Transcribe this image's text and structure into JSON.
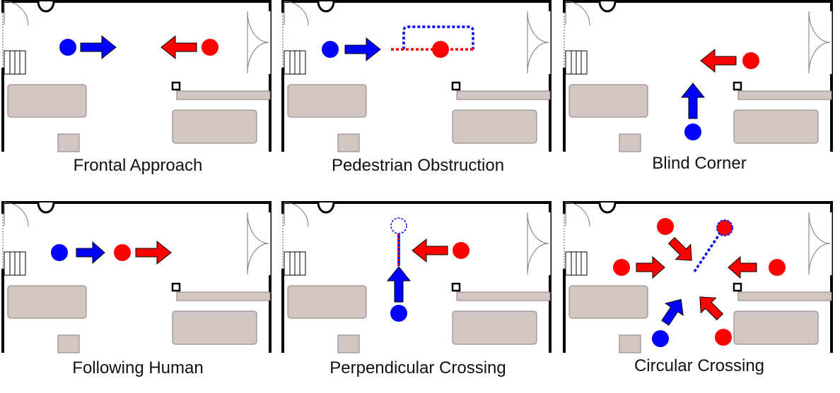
{
  "colors": {
    "robot": "#0000ff",
    "human": "#ff0000",
    "furniture": "#d2c6c3",
    "wall": "#000000"
  },
  "scenarios": [
    {
      "title": "Frontal Approach"
    },
    {
      "title": "Pedestrian Obstruction"
    },
    {
      "title": "Blind Corner"
    },
    {
      "title": "Following Human"
    },
    {
      "title": "Perpendicular Crossing"
    },
    {
      "title": "Circular Crossing"
    }
  ]
}
